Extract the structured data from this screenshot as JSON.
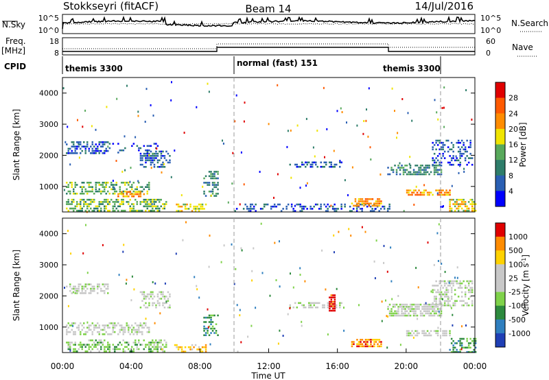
{
  "header": {
    "station": "Stokkseyri (fitACF)",
    "beam": "Beam 14",
    "date": "14/Jul/2016"
  },
  "nsky_panel": {
    "left_label": "N.Sky",
    "right_label": "N.Search",
    "left_ticks": [
      "10^5",
      "10^0"
    ],
    "right_ticks": [
      "10^5",
      "10^0"
    ]
  },
  "freq_panel": {
    "left_label_1": "Freq.",
    "left_label_2": "[MHz]",
    "right_label": "Nave",
    "left_ticks": [
      "18",
      "8"
    ],
    "right_ticks": [
      "60",
      "0"
    ]
  },
  "cpid_panel": {
    "label": "CPID",
    "segments": [
      {
        "name": "themis 3300",
        "start": 0,
        "end": 10
      },
      {
        "name": "normal (fast) 151",
        "start": 10,
        "end": 19
      },
      {
        "name": "themis 3300",
        "start": 19,
        "end": 24
      }
    ]
  },
  "colors": {
    "power_scale": [
      "#0000ff",
      "#2a5fb3",
      "#2e7d6a",
      "#58a95c",
      "#f0e400",
      "#ff8c00",
      "#ff5a00",
      "#e00000"
    ],
    "velocity_scale": [
      "#1f3fb5",
      "#2f7fbf",
      "#2d8a3e",
      "#7fd24a",
      "#c8c8c8",
      "#c8c8c8",
      "#ffd200",
      "#ff8c00",
      "#e00000"
    ]
  },
  "chart_data": [
    {
      "type": "heatmap",
      "title": "Power",
      "ylabel": "Slant Range [km]",
      "yticks": [
        1000,
        2000,
        3000,
        4000
      ],
      "ylim": [
        180,
        4500
      ],
      "xlim": [
        0,
        24
      ],
      "colorbar": {
        "label": "Power [dB]",
        "ticks": [
          "4",
          "8",
          "12",
          "16",
          "20",
          "24",
          "28"
        ],
        "range": [
          0,
          32
        ]
      },
      "regions": [
        {
          "x": [
            0.2,
            2.6
          ],
          "y": [
            2050,
            2450
          ],
          "level": 1,
          "density": 0.55
        },
        {
          "x": [
            2.6,
            5.5
          ],
          "y": [
            2100,
            2400
          ],
          "level": 1,
          "density": 0.15
        },
        {
          "x": [
            4.5,
            6.2
          ],
          "y": [
            1600,
            2150
          ],
          "level": 1,
          "density": 0.5
        },
        {
          "x": [
            0.2,
            5.0
          ],
          "y": [
            750,
            1150
          ],
          "level": 3,
          "density": 0.45
        },
        {
          "x": [
            0.2,
            6.0
          ],
          "y": [
            200,
            600
          ],
          "level": 3,
          "density": 0.55
        },
        {
          "x": [
            3.2,
            4.7
          ],
          "y": [
            650,
            850
          ],
          "level": 5,
          "density": 0.6
        },
        {
          "x": [
            6.5,
            8.3
          ],
          "y": [
            200,
            450
          ],
          "level": 4,
          "density": 0.5
        },
        {
          "x": [
            8.2,
            9.0
          ],
          "y": [
            700,
            1500
          ],
          "level": 2,
          "density": 0.5
        },
        {
          "x": [
            10.0,
            19.0
          ],
          "y": [
            200,
            450
          ],
          "level": 1,
          "density": 0.35
        },
        {
          "x": [
            13.2,
            16.2
          ],
          "y": [
            1650,
            1800
          ],
          "level": 1,
          "density": 0.5
        },
        {
          "x": [
            16.8,
            18.5
          ],
          "y": [
            400,
            620
          ],
          "level": 5,
          "density": 0.7
        },
        {
          "x": [
            18.9,
            22.0
          ],
          "y": [
            1350,
            1700
          ],
          "level": 2,
          "density": 0.6
        },
        {
          "x": [
            20.0,
            22.5
          ],
          "y": [
            750,
            900
          ],
          "level": 5,
          "density": 0.6
        },
        {
          "x": [
            21.5,
            23.8
          ],
          "y": [
            1700,
            2500
          ],
          "level": 1,
          "density": 0.35
        },
        {
          "x": [
            22.5,
            24.0
          ],
          "y": [
            200,
            600
          ],
          "level": 4,
          "density": 0.6
        }
      ]
    },
    {
      "type": "heatmap",
      "title": "Velocity",
      "ylabel": "Slant Range [km]",
      "yticks": [
        1000,
        2000,
        3000,
        4000
      ],
      "ylim": [
        180,
        4500
      ],
      "xlim": [
        0,
        24
      ],
      "xlabel": "Time UT",
      "xticks": [
        "00:00",
        "04:00",
        "08:00",
        "12:00",
        "16:00",
        "20:00",
        "00:00"
      ],
      "colorbar": {
        "label": "Velocity [m s^-1]",
        "ticks": [
          "1000",
          "500",
          "100",
          "25",
          "-25",
          "-100",
          "-500",
          "-1000"
        ]
      },
      "regions": [
        {
          "x": [
            0.2,
            2.6
          ],
          "y": [
            2050,
            2400
          ],
          "level": 4,
          "density": 0.5
        },
        {
          "x": [
            4.5,
            6.2
          ],
          "y": [
            1600,
            2150
          ],
          "level": 4,
          "density": 0.4
        },
        {
          "x": [
            0.2,
            5.0
          ],
          "y": [
            750,
            1150
          ],
          "level": 4,
          "density": 0.5
        },
        {
          "x": [
            0.2,
            6.0
          ],
          "y": [
            200,
            600
          ],
          "level": 3,
          "density": 0.45
        },
        {
          "x": [
            6.5,
            8.3
          ],
          "y": [
            200,
            450
          ],
          "level": 6,
          "density": 0.35
        },
        {
          "x": [
            8.2,
            9.0
          ],
          "y": [
            700,
            1400
          ],
          "level": 2,
          "density": 0.45
        },
        {
          "x": [
            13.2,
            16.2
          ],
          "y": [
            1650,
            1800
          ],
          "level": 4,
          "density": 0.5
        },
        {
          "x": [
            15.5,
            15.8
          ],
          "y": [
            1500,
            2050
          ],
          "level": 8,
          "density": 0.8
        },
        {
          "x": [
            16.8,
            18.5
          ],
          "y": [
            400,
            620
          ],
          "level": 7,
          "density": 0.75
        },
        {
          "x": [
            18.9,
            22.0
          ],
          "y": [
            1350,
            1750
          ],
          "level": 4,
          "density": 0.75
        },
        {
          "x": [
            20.0,
            22.5
          ],
          "y": [
            750,
            900
          ],
          "level": 4,
          "density": 0.6
        },
        {
          "x": [
            21.5,
            23.8
          ],
          "y": [
            1700,
            2500
          ],
          "level": 4,
          "density": 0.4
        },
        {
          "x": [
            22.5,
            24.0
          ],
          "y": [
            200,
            650
          ],
          "level": 2,
          "density": 0.5
        }
      ]
    }
  ]
}
